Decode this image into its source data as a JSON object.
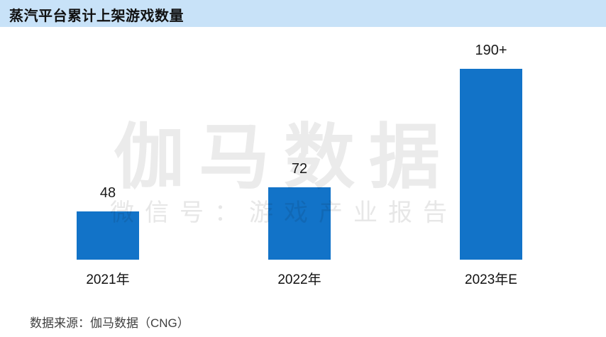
{
  "header": {
    "title": "蒸汽平台累计上架游戏数量"
  },
  "watermark": {
    "line1": "伽马数据",
    "line2": "微信号：游戏产业报告"
  },
  "footer": {
    "source": "数据来源：伽马数据（CNG）"
  },
  "colors": {
    "bar": "#1273c8",
    "title_band": "#c8e2f8",
    "watermark_line1": "#ebebeb",
    "watermark_line2": "#e7e7e7"
  },
  "chart_data": {
    "type": "bar",
    "title": "蒸汽平台累计上架游戏数量",
    "categories": [
      "2021年",
      "2022年",
      "2023年E"
    ],
    "values": [
      48,
      72,
      190
    ],
    "value_labels": [
      "48",
      "72",
      "190+"
    ],
    "xlabel": "",
    "ylabel": "",
    "ylim": [
      0,
      200
    ],
    "grid": false,
    "legend": "none",
    "source_note": "数据来源：伽马数据（CNG）"
  }
}
